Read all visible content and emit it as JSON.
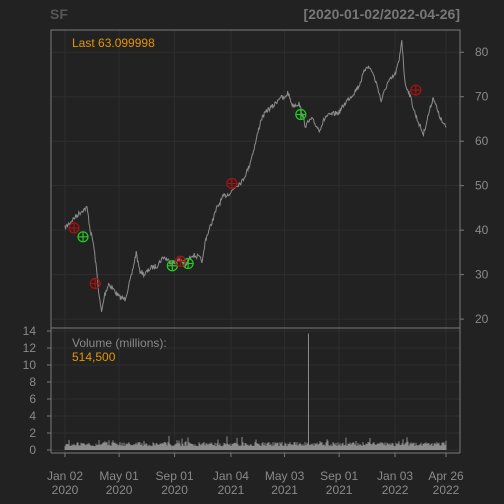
{
  "header": {
    "symbol": "SF",
    "range": "[2020-01-02/2022-04-26]"
  },
  "price_panel": {
    "last_label": "Last 63.099998"
  },
  "volume_panel": {
    "label": "Volume (millions):",
    "value": "514,500"
  },
  "colors": {
    "background": "#222222",
    "grid": "#2e2e2e",
    "border": "#7a7a7a",
    "text": "#8a8a8a",
    "accent": "#e69500",
    "series": "#8c8c8c",
    "buy": "#22cc22",
    "sell": "#aa1111"
  },
  "chart_data": {
    "type": "line",
    "x_range": [
      "2020-01-02",
      "2022-04-26"
    ],
    "x_ticks": [
      {
        "date": "2020-01-02",
        "label": [
          "Jan 02",
          "2020"
        ]
      },
      {
        "date": "2020-05-01",
        "label": [
          "May 01",
          "2020"
        ]
      },
      {
        "date": "2020-09-01",
        "label": [
          "Sep 01",
          "2020"
        ]
      },
      {
        "date": "2021-01-04",
        "label": [
          "Jan 04",
          "2021"
        ]
      },
      {
        "date": "2021-05-03",
        "label": [
          "May 03",
          "2021"
        ]
      },
      {
        "date": "2021-09-01",
        "label": [
          "Sep 01",
          "2021"
        ]
      },
      {
        "date": "2022-01-03",
        "label": [
          "Jan 03",
          "2022"
        ]
      },
      {
        "date": "2022-04-26",
        "label": [
          "Apr 26",
          "2022"
        ]
      }
    ],
    "price": {
      "ylim": [
        18,
        85
      ],
      "yticks": [
        20,
        30,
        40,
        50,
        60,
        70,
        80
      ],
      "series": [
        [
          "2020-01-02",
          40.5
        ],
        [
          "2020-01-20",
          42.5
        ],
        [
          "2020-02-10",
          44.5
        ],
        [
          "2020-02-20",
          45.0
        ],
        [
          "2020-02-27",
          40.0
        ],
        [
          "2020-03-05",
          37.0
        ],
        [
          "2020-03-12",
          31.0
        ],
        [
          "2020-03-18",
          25.0
        ],
        [
          "2020-03-23",
          21.5
        ],
        [
          "2020-03-30",
          25.5
        ],
        [
          "2020-04-08",
          28.0
        ],
        [
          "2020-04-20",
          26.5
        ],
        [
          "2020-05-01",
          25.0
        ],
        [
          "2020-05-14",
          24.5
        ],
        [
          "2020-05-28",
          29.5
        ],
        [
          "2020-06-08",
          35.0
        ],
        [
          "2020-06-15",
          31.0
        ],
        [
          "2020-06-26",
          30.0
        ],
        [
          "2020-07-10",
          31.5
        ],
        [
          "2020-07-24",
          32.0
        ],
        [
          "2020-08-07",
          34.0
        ],
        [
          "2020-08-21",
          33.0
        ],
        [
          "2020-09-01",
          32.5
        ],
        [
          "2020-09-15",
          33.5
        ],
        [
          "2020-09-25",
          32.0
        ],
        [
          "2020-10-09",
          34.5
        ],
        [
          "2020-10-23",
          34.0
        ],
        [
          "2020-11-02",
          33.0
        ],
        [
          "2020-11-09",
          38.0
        ],
        [
          "2020-11-20",
          41.0
        ],
        [
          "2020-12-04",
          45.0
        ],
        [
          "2020-12-18",
          47.5
        ],
        [
          "2021-01-04",
          48.5
        ],
        [
          "2021-01-15",
          50.0
        ],
        [
          "2021-01-29",
          51.0
        ],
        [
          "2021-02-12",
          54.0
        ],
        [
          "2021-02-26",
          59.0
        ],
        [
          "2021-03-12",
          65.0
        ],
        [
          "2021-03-26",
          67.0
        ],
        [
          "2021-04-09",
          68.0
        ],
        [
          "2021-04-23",
          70.0
        ],
        [
          "2021-05-03",
          69.5
        ],
        [
          "2021-05-10",
          71.0
        ],
        [
          "2021-05-21",
          68.0
        ],
        [
          "2021-06-04",
          68.5
        ],
        [
          "2021-06-18",
          63.5
        ],
        [
          "2021-07-02",
          65.0
        ],
        [
          "2021-07-19",
          62.5
        ],
        [
          "2021-08-02",
          65.5
        ],
        [
          "2021-08-16",
          66.0
        ],
        [
          "2021-09-01",
          66.5
        ],
        [
          "2021-09-17",
          69.0
        ],
        [
          "2021-10-01",
          70.5
        ],
        [
          "2021-10-15",
          72.5
        ],
        [
          "2021-11-01",
          77.0
        ],
        [
          "2021-11-12",
          76.0
        ],
        [
          "2021-11-26",
          72.0
        ],
        [
          "2021-12-03",
          69.0
        ],
        [
          "2021-12-17",
          73.0
        ],
        [
          "2022-01-03",
          75.0
        ],
        [
          "2022-01-12",
          78.0
        ],
        [
          "2022-01-18",
          83.0
        ],
        [
          "2022-01-25",
          73.0
        ],
        [
          "2022-02-03",
          71.0
        ],
        [
          "2022-02-17",
          66.0
        ],
        [
          "2022-03-07",
          61.5
        ],
        [
          "2022-03-18",
          66.0
        ],
        [
          "2022-03-29",
          70.0
        ],
        [
          "2022-04-08",
          66.5
        ],
        [
          "2022-04-19",
          64.0
        ],
        [
          "2022-04-26",
          63.1
        ]
      ],
      "buy_signals": [
        [
          "2020-02-11",
          38.5
        ],
        [
          "2020-08-27",
          32.0
        ],
        [
          "2020-10-01",
          32.5
        ],
        [
          "2021-06-08",
          66.0
        ]
      ],
      "sell_signals": [
        [
          "2020-01-22",
          40.5
        ],
        [
          "2020-03-09",
          28.0
        ],
        [
          "2020-09-14",
          33.0
        ],
        [
          "2021-01-06",
          50.5
        ],
        [
          "2022-02-18",
          71.5
        ]
      ]
    },
    "volume": {
      "ylim": [
        0,
        14
      ],
      "yticks": [
        0,
        2,
        4,
        6,
        8,
        10,
        12,
        14
      ],
      "spike": [
        "2021-06-25",
        13.7
      ],
      "baseline": 0.45
    }
  }
}
